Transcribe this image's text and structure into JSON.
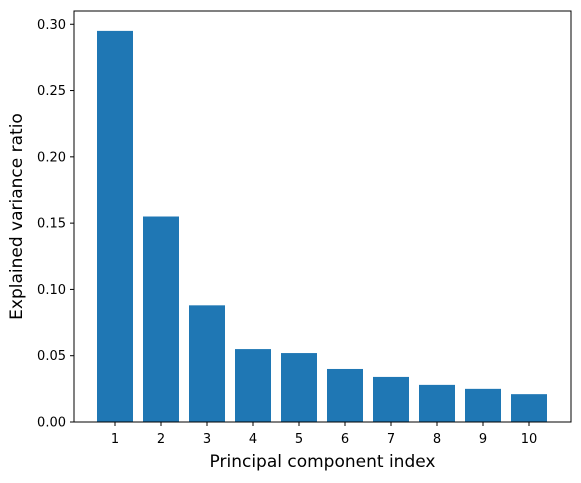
{
  "chart_data": {
    "type": "bar",
    "title": "",
    "xlabel": "Principal component index",
    "ylabel": "Explained variance ratio",
    "categories": [
      "1",
      "2",
      "3",
      "4",
      "5",
      "6",
      "7",
      "8",
      "9",
      "10"
    ],
    "values": [
      0.295,
      0.155,
      0.088,
      0.055,
      0.052,
      0.04,
      0.034,
      0.028,
      0.025,
      0.021
    ],
    "ylim": [
      0,
      0.31
    ],
    "yticks": [
      "0.00",
      "0.05",
      "0.10",
      "0.15",
      "0.20",
      "0.25",
      "0.30"
    ],
    "grid": false,
    "legend": "none",
    "bar_color": "#1f77b4"
  }
}
